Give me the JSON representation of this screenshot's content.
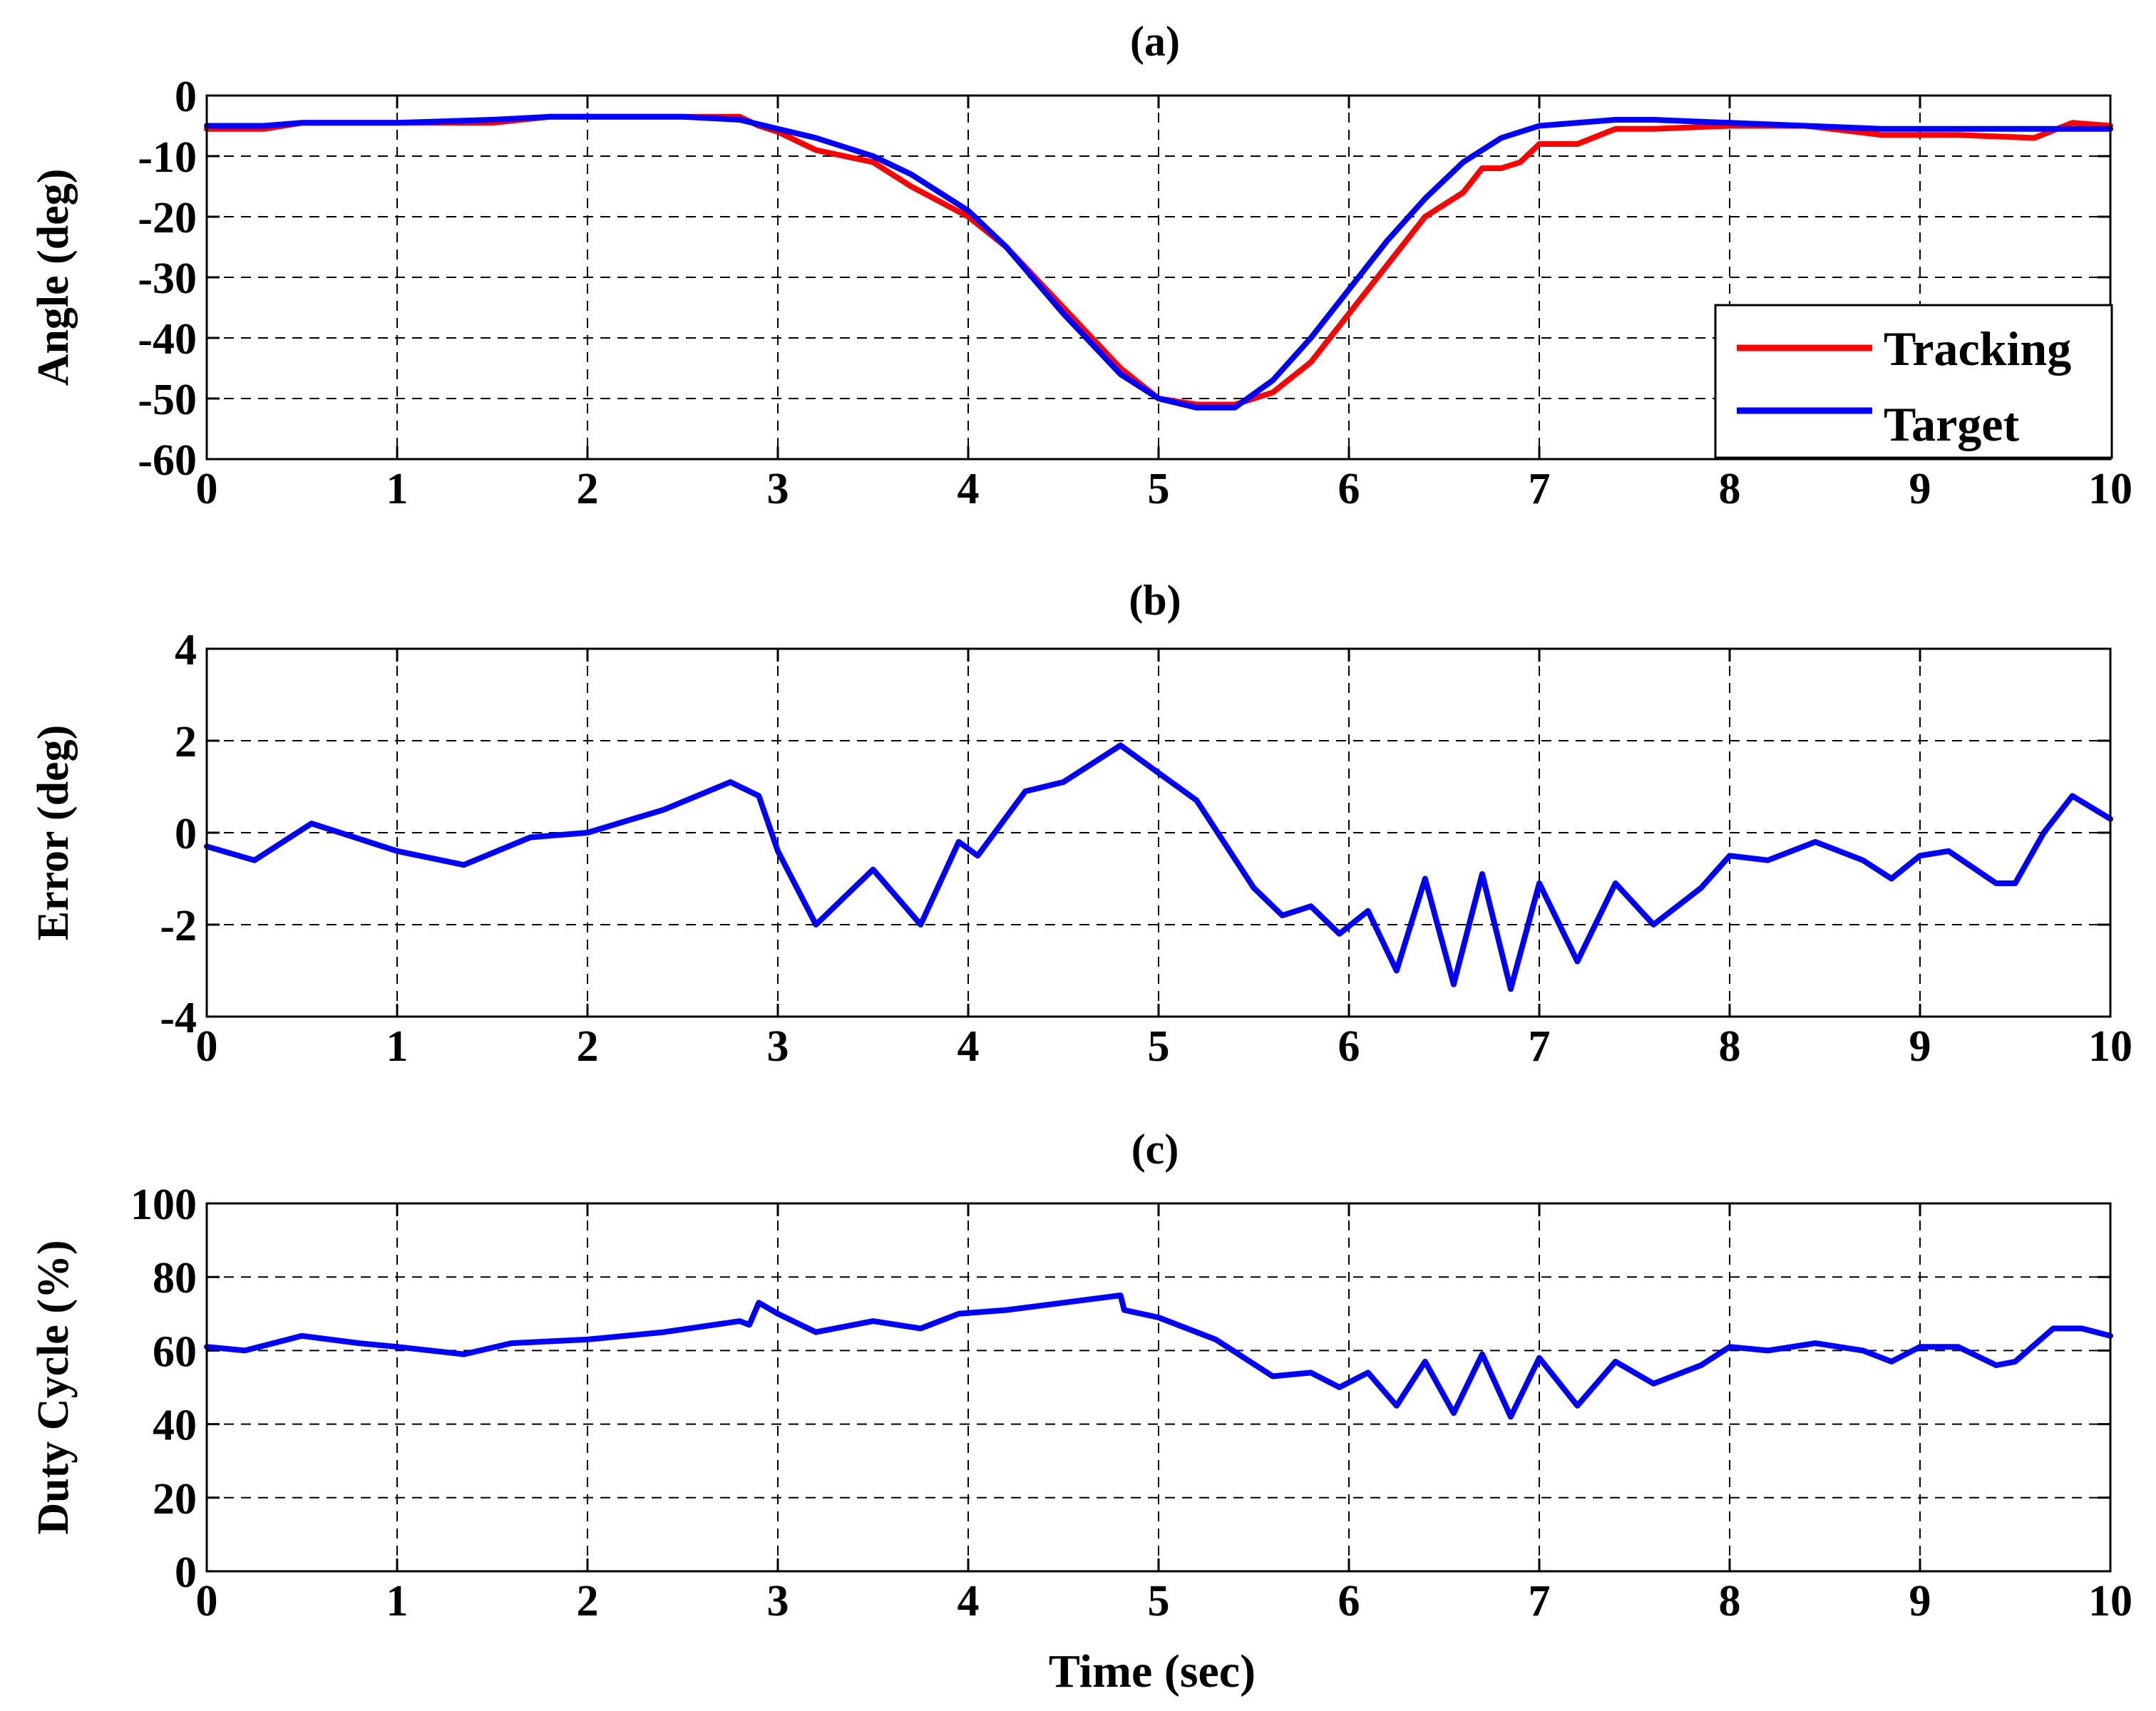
{
  "chart_data": [
    {
      "type": "line",
      "title": "(a)",
      "xlabel": "",
      "ylabel": "Angle (deg)",
      "xlim": [
        0,
        10
      ],
      "ylim": [
        -60,
        0
      ],
      "xticks": [
        0,
        1,
        2,
        3,
        4,
        5,
        6,
        7,
        8,
        9,
        10
      ],
      "yticks": [
        0,
        -10,
        -20,
        -30,
        -40,
        -50,
        -60
      ],
      "grid": true,
      "legend_position": "bottom-right",
      "series": [
        {
          "name": "Tracking",
          "color": "#ff0000",
          "x": [
            0,
            0.3,
            0.5,
            1.0,
            1.5,
            1.8,
            2.0,
            2.5,
            2.8,
            2.9,
            3.0,
            3.2,
            3.5,
            3.7,
            4.0,
            4.2,
            4.5,
            4.8,
            5.0,
            5.2,
            5.4,
            5.6,
            5.8,
            6.0,
            6.2,
            6.4,
            6.6,
            6.7,
            6.8,
            6.9,
            7.0,
            7.2,
            7.4,
            7.6,
            8.0,
            8.4,
            8.8,
            9.2,
            9.6,
            9.8,
            10.0
          ],
          "y": [
            -5.5,
            -5.5,
            -4.5,
            -4.5,
            -4.5,
            -3.5,
            -3.5,
            -3.5,
            -3.5,
            -5,
            -6,
            -9,
            -11,
            -15,
            -20,
            -25,
            -35,
            -45,
            -50,
            -51,
            -51,
            -49,
            -44,
            -36,
            -28,
            -20,
            -16,
            -12,
            -12,
            -11,
            -8,
            -8,
            -5.5,
            -5.5,
            -5,
            -5,
            -6.5,
            -6.5,
            -7,
            -4.5,
            -5
          ]
        },
        {
          "name": "Target",
          "color": "#0000ff",
          "x": [
            0,
            0.3,
            0.5,
            1.0,
            1.5,
            1.8,
            2.0,
            2.5,
            2.8,
            3.0,
            3.2,
            3.5,
            3.7,
            4.0,
            4.2,
            4.5,
            4.8,
            5.0,
            5.2,
            5.4,
            5.6,
            5.8,
            6.0,
            6.2,
            6.4,
            6.6,
            6.8,
            7.0,
            7.2,
            7.4,
            7.6,
            8.0,
            8.4,
            8.8,
            9.2,
            9.6,
            10.0
          ],
          "y": [
            -5,
            -5,
            -4.5,
            -4.5,
            -4,
            -3.5,
            -3.5,
            -3.5,
            -4,
            -5.5,
            -7,
            -10,
            -13,
            -19,
            -25,
            -36,
            -46,
            -50,
            -51.5,
            -51.5,
            -47,
            -40,
            -32,
            -24,
            -17,
            -11,
            -7,
            -5,
            -4.5,
            -4,
            -4,
            -4.5,
            -5,
            -5.5,
            -5.5,
            -5.5,
            -5.5
          ]
        }
      ]
    },
    {
      "type": "line",
      "title": "(b)",
      "xlabel": "",
      "ylabel": "Error (deg)",
      "xlim": [
        0,
        10
      ],
      "ylim": [
        -4,
        4
      ],
      "xticks": [
        0,
        1,
        2,
        3,
        4,
        5,
        6,
        7,
        8,
        9,
        10
      ],
      "yticks": [
        4,
        2,
        0,
        -2,
        -4
      ],
      "grid": true,
      "series": [
        {
          "name": "Error",
          "color": "#0000ff",
          "x": [
            0,
            0.25,
            0.55,
            1.0,
            1.35,
            1.7,
            2.0,
            2.4,
            2.75,
            2.9,
            3.0,
            3.2,
            3.5,
            3.75,
            3.95,
            4.05,
            4.3,
            4.5,
            4.8,
            5.0,
            5.2,
            5.5,
            5.65,
            5.8,
            5.95,
            6.1,
            6.25,
            6.4,
            6.55,
            6.7,
            6.85,
            7.0,
            7.2,
            7.4,
            7.6,
            7.85,
            8.0,
            8.2,
            8.45,
            8.7,
            8.85,
            9.0,
            9.15,
            9.4,
            9.5,
            9.65,
            9.8,
            10.0
          ],
          "y": [
            -0.3,
            -0.6,
            0.2,
            -0.4,
            -0.7,
            -0.1,
            0.0,
            0.5,
            1.1,
            0.8,
            -0.4,
            -2.0,
            -0.8,
            -2.0,
            -0.2,
            -0.5,
            0.9,
            1.1,
            1.9,
            1.3,
            0.7,
            -1.2,
            -1.8,
            -1.6,
            -2.2,
            -1.7,
            -3.0,
            -1.0,
            -3.3,
            -0.9,
            -3.4,
            -1.1,
            -2.8,
            -1.1,
            -2.0,
            -1.2,
            -0.5,
            -0.6,
            -0.2,
            -0.6,
            -1.0,
            -0.5,
            -0.4,
            -1.1,
            -1.1,
            0.0,
            0.8,
            0.3
          ]
        }
      ]
    },
    {
      "type": "line",
      "title": "(c)",
      "xlabel": "Time (sec)",
      "ylabel": "Duty Cycle (%)",
      "xlim": [
        0,
        10
      ],
      "ylim": [
        0,
        100
      ],
      "xticks": [
        0,
        1,
        2,
        3,
        4,
        5,
        6,
        7,
        8,
        9,
        10
      ],
      "yticks": [
        100,
        80,
        60,
        40,
        20,
        0
      ],
      "grid": true,
      "series": [
        {
          "name": "Duty Cycle",
          "color": "#0000ff",
          "x": [
            0,
            0.2,
            0.5,
            0.8,
            1.0,
            1.35,
            1.6,
            2.0,
            2.4,
            2.8,
            2.85,
            2.9,
            3.0,
            3.2,
            3.5,
            3.75,
            3.95,
            4.2,
            4.5,
            4.8,
            4.82,
            5.0,
            5.3,
            5.6,
            5.8,
            5.95,
            6.1,
            6.25,
            6.4,
            6.55,
            6.7,
            6.85,
            7.0,
            7.2,
            7.4,
            7.6,
            7.85,
            8.0,
            8.2,
            8.45,
            8.7,
            8.85,
            9.0,
            9.2,
            9.4,
            9.5,
            9.7,
            9.85,
            10.0
          ],
          "y": [
            61,
            60,
            64,
            62,
            61,
            59,
            62,
            63,
            65,
            68,
            67,
            73,
            70,
            65,
            68,
            66,
            70,
            71,
            73,
            75,
            71,
            69,
            63,
            53,
            54,
            50,
            54,
            45,
            57,
            43,
            59,
            42,
            58,
            45,
            57,
            51,
            56,
            61,
            60,
            62,
            60,
            57,
            61,
            61,
            56,
            57,
            66,
            66,
            64
          ]
        }
      ]
    }
  ]
}
